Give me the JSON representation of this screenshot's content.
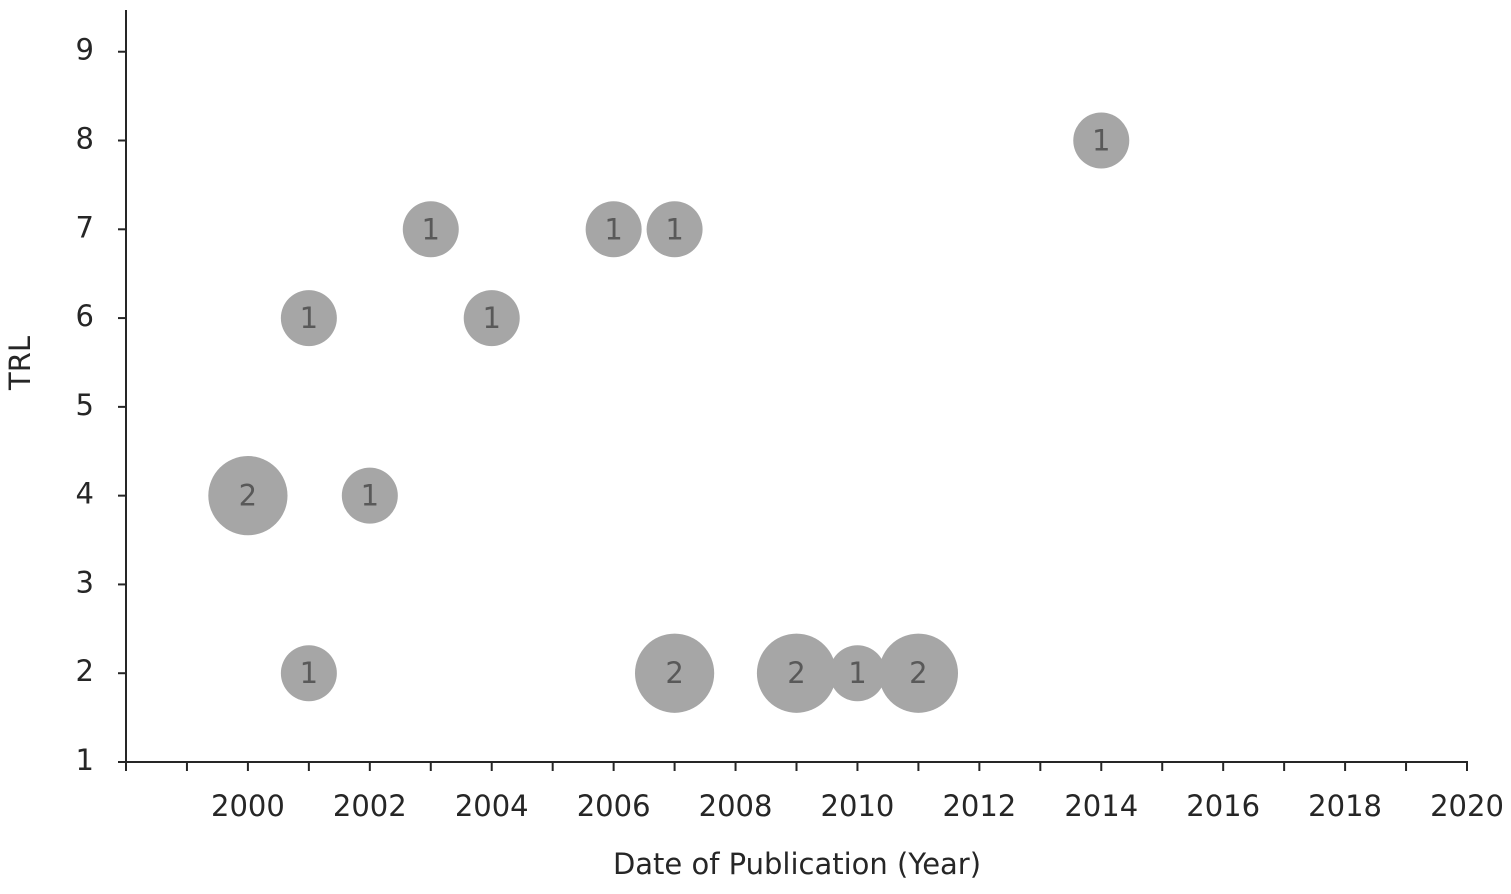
{
  "chart_data": {
    "type": "bubble",
    "x_label": "Date of Publication (Year)",
    "y_label": "TRL",
    "x": [
      2000,
      2001,
      2001,
      2002,
      2003,
      2004,
      2006,
      2007,
      2007,
      2009,
      2010,
      2011,
      2014
    ],
    "y": [
      4,
      6,
      2,
      4,
      7,
      6,
      7,
      7,
      2,
      2,
      2,
      2,
      8
    ],
    "sizes": [
      2,
      1,
      1,
      1,
      1,
      1,
      1,
      1,
      2,
      2,
      1,
      2,
      1
    ],
    "color": "#a6a6a6",
    "label_color": "#595959",
    "xlim": [
      1998,
      2020
    ],
    "xticks": [
      2000,
      2002,
      2004,
      2006,
      2008,
      2010,
      2012,
      2014,
      2016,
      2018,
      2020
    ],
    "xminor_ticks": [
      1998,
      1999,
      2001,
      2003,
      2005,
      2007,
      2009,
      2011,
      2013,
      2015,
      2017,
      2019
    ],
    "ylim": [
      1,
      9.47
    ],
    "yticks": [
      1,
      2,
      3,
      4,
      5,
      6,
      7,
      8,
      9
    ],
    "grid": false
  }
}
